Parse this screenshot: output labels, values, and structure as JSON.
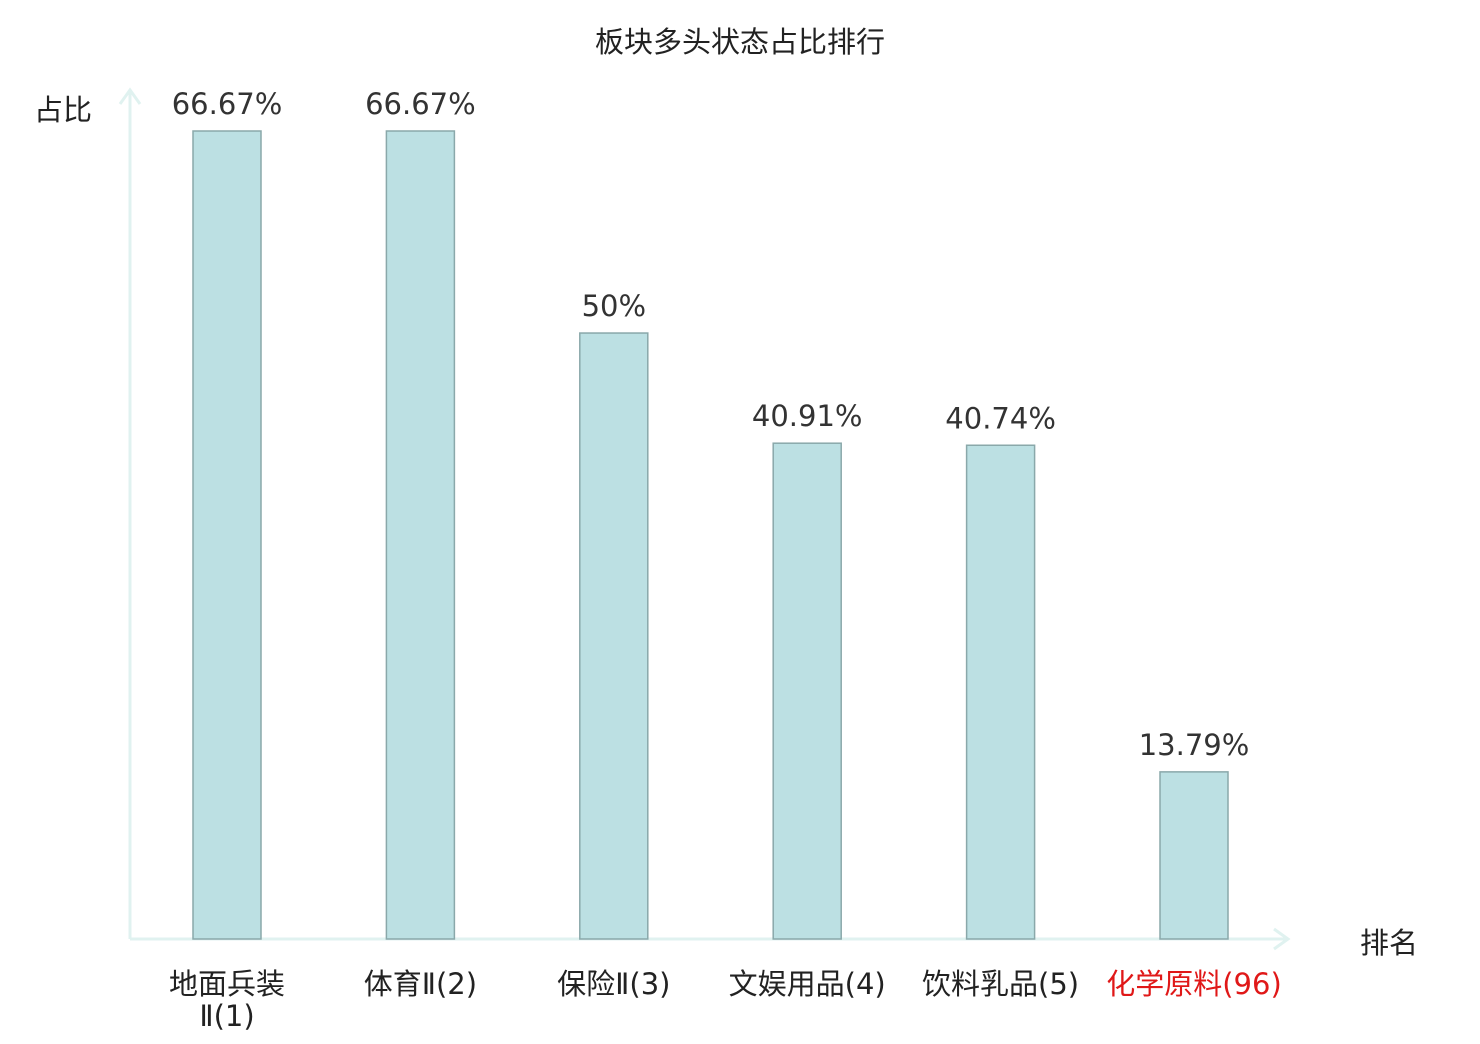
{
  "chart_data": {
    "type": "bar",
    "title": "板块多头状态占比排行",
    "ylabel": "占比",
    "xlabel": "排名",
    "categories": [
      "地面兵装Ⅱ(1)",
      "体育Ⅱ(2)",
      "保险Ⅱ(3)",
      "文娱用品(4)",
      "饮料乳品(5)",
      "化学原料(96)"
    ],
    "category_lines": [
      [
        "地面兵装",
        "Ⅱ(1)"
      ],
      [
        "体育Ⅱ(2)"
      ],
      [
        "保险Ⅱ(3)"
      ],
      [
        "文娱用品(4)"
      ],
      [
        "饮料乳品(5)"
      ],
      [
        "化学原料(96)"
      ]
    ],
    "values": [
      66.67,
      66.67,
      50,
      40.91,
      40.74,
      13.79
    ],
    "value_labels": [
      "66.67%",
      "66.67%",
      "50%",
      "40.91%",
      "40.74%",
      "13.79%"
    ],
    "highlight_index": 5,
    "ylim": [
      0,
      66.67
    ],
    "grid": false,
    "legend": "none",
    "colors": {
      "bar_fill": "#bce0e3",
      "bar_stroke": "#8aa8aa",
      "axis": "#e0f2f0",
      "text": "#333333",
      "title": "#222222",
      "highlight": "#e01818",
      "tick_suffix": "#555555"
    }
  }
}
